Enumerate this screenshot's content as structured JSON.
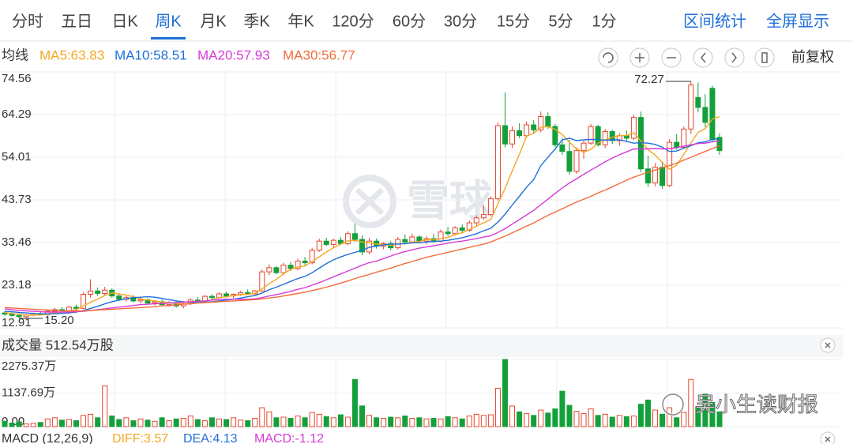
{
  "tabs": [
    "分时",
    "五日",
    "日K",
    "周K",
    "月K",
    "季K",
    "年K",
    "120分",
    "60分",
    "30分",
    "15分",
    "5分",
    "1分"
  ],
  "active_tab": 3,
  "actions": [
    "区间统计",
    "全屏显示"
  ],
  "ma_title": "均线",
  "adjust": "前复权",
  "watermark": "雪球",
  "credit": "吴小生读财报",
  "macd": {
    "label": "MACD (12,26,9)",
    "items": [
      {
        "text": "DIFF:3.57",
        "color": "#f5a623"
      },
      {
        "text": "DEA:4.13",
        "color": "#1e6fd9"
      },
      {
        "text": "MACD:-1.12",
        "color": "#d63bd6"
      }
    ]
  },
  "chart_data": [
    {
      "type": "candlestick",
      "up_color": "#e4462e",
      "down_color": "#13a03b",
      "ylim": [
        12.91,
        74.56
      ],
      "yticks": [
        12.91,
        23.18,
        33.46,
        43.73,
        54.01,
        64.29,
        74.56
      ],
      "grid": true,
      "annotations": [
        {
          "text": "72.27",
          "candle": 96,
          "at": "high"
        },
        {
          "text": "15.20",
          "candle": 2,
          "at": "low"
        }
      ],
      "candles": [
        [
          16.5,
          17.0,
          15.8,
          16.2
        ],
        [
          16.2,
          16.8,
          15.6,
          15.9
        ],
        [
          15.9,
          16.4,
          15.2,
          15.6
        ],
        [
          15.6,
          16.3,
          15.2,
          16.0
        ],
        [
          16.0,
          16.6,
          15.7,
          16.3
        ],
        [
          16.3,
          16.9,
          15.9,
          16.1
        ],
        [
          16.1,
          17.2,
          15.9,
          16.9
        ],
        [
          16.9,
          17.8,
          16.5,
          17.3
        ],
        [
          17.3,
          18.0,
          16.8,
          17.0
        ],
        [
          17.0,
          18.2,
          16.7,
          17.9
        ],
        [
          17.9,
          18.5,
          17.2,
          17.6
        ],
        [
          17.6,
          21.5,
          17.4,
          21.0
        ],
        [
          21.0,
          24.6,
          20.2,
          21.8
        ],
        [
          21.8,
          22.6,
          20.6,
          21.2
        ],
        [
          21.2,
          22.8,
          20.8,
          22.0
        ],
        [
          22.0,
          22.4,
          20.2,
          20.6
        ],
        [
          20.6,
          21.2,
          19.4,
          19.8
        ],
        [
          19.8,
          20.6,
          19.2,
          20.2
        ],
        [
          20.2,
          20.8,
          19.0,
          19.4
        ],
        [
          19.4,
          20.2,
          18.8,
          19.7
        ],
        [
          19.7,
          20.0,
          18.6,
          18.9
        ],
        [
          18.9,
          19.6,
          18.3,
          19.2
        ],
        [
          19.2,
          19.8,
          18.2,
          18.5
        ],
        [
          18.5,
          19.4,
          18.0,
          19.0
        ],
        [
          19.0,
          19.6,
          17.8,
          18.2
        ],
        [
          18.2,
          19.0,
          17.6,
          18.7
        ],
        [
          18.7,
          20.0,
          18.4,
          19.6
        ],
        [
          19.6,
          20.4,
          19.0,
          19.4
        ],
        [
          19.4,
          20.8,
          19.2,
          20.5
        ],
        [
          20.5,
          21.0,
          19.8,
          20.2
        ],
        [
          20.2,
          21.4,
          20.0,
          21.1
        ],
        [
          21.1,
          21.6,
          20.2,
          20.6
        ],
        [
          20.6,
          21.2,
          20.0,
          21.0
        ],
        [
          21.0,
          21.8,
          20.6,
          21.4
        ],
        [
          21.4,
          22.2,
          20.8,
          21.1
        ],
        [
          21.1,
          22.0,
          20.8,
          21.8
        ],
        [
          21.8,
          27.0,
          21.6,
          26.4
        ],
        [
          26.4,
          28.2,
          25.6,
          27.4
        ],
        [
          27.4,
          27.8,
          25.8,
          26.2
        ],
        [
          26.2,
          28.6,
          25.6,
          28.0
        ],
        [
          28.0,
          28.8,
          26.6,
          27.2
        ],
        [
          27.2,
          29.6,
          26.8,
          29.0
        ],
        [
          29.0,
          30.0,
          28.0,
          28.6
        ],
        [
          28.6,
          32.2,
          28.2,
          31.6
        ],
        [
          31.6,
          34.4,
          31.2,
          33.8
        ],
        [
          33.8,
          34.6,
          32.6,
          33.0
        ],
        [
          33.0,
          34.4,
          32.2,
          34.0
        ],
        [
          34.0,
          34.8,
          32.8,
          33.2
        ],
        [
          33.2,
          36.2,
          32.8,
          35.6
        ],
        [
          35.6,
          38.0,
          33.6,
          34.2
        ],
        [
          34.2,
          35.2,
          30.4,
          31.2
        ],
        [
          31.2,
          34.6,
          30.6,
          33.8
        ],
        [
          33.8,
          34.4,
          32.0,
          32.6
        ],
        [
          32.6,
          33.6,
          31.8,
          33.2
        ],
        [
          33.2,
          33.8,
          31.6,
          32.2
        ],
        [
          32.2,
          34.8,
          31.8,
          34.2
        ],
        [
          34.2,
          35.4,
          33.0,
          33.6
        ],
        [
          33.6,
          35.6,
          33.2,
          34.8
        ],
        [
          34.8,
          35.2,
          33.2,
          33.8
        ],
        [
          33.8,
          35.0,
          33.0,
          34.4
        ],
        [
          34.4,
          35.6,
          33.4,
          33.8
        ],
        [
          33.8,
          36.6,
          33.4,
          36.0
        ],
        [
          36.0,
          37.2,
          35.0,
          35.6
        ],
        [
          35.6,
          37.4,
          35.2,
          37.0
        ],
        [
          37.0,
          37.8,
          35.8,
          36.4
        ],
        [
          36.4,
          38.8,
          36.0,
          38.2
        ],
        [
          38.2,
          40.0,
          37.4,
          39.4
        ],
        [
          39.4,
          42.4,
          39.0,
          40.2
        ],
        [
          40.2,
          44.6,
          39.8,
          44.0
        ],
        [
          44.0,
          62.4,
          43.6,
          61.6
        ],
        [
          61.6,
          69.6,
          56.4,
          57.2
        ],
        [
          57.2,
          61.4,
          56.2,
          60.4
        ],
        [
          60.4,
          62.2,
          58.6,
          59.2
        ],
        [
          59.2,
          62.6,
          58.6,
          61.8
        ],
        [
          61.8,
          63.0,
          59.6,
          60.6
        ],
        [
          60.6,
          65.0,
          60.0,
          63.8
        ],
        [
          63.8,
          64.8,
          60.8,
          61.4
        ],
        [
          61.4,
          62.0,
          56.4,
          57.0
        ],
        [
          57.0,
          58.6,
          54.6,
          55.4
        ],
        [
          55.4,
          58.2,
          49.8,
          50.6
        ],
        [
          50.6,
          56.4,
          50.0,
          55.6
        ],
        [
          55.6,
          58.0,
          53.6,
          57.4
        ],
        [
          57.4,
          62.0,
          57.0,
          61.4
        ],
        [
          61.4,
          61.8,
          56.6,
          57.0
        ],
        [
          57.0,
          60.8,
          56.2,
          60.2
        ],
        [
          60.2,
          60.6,
          57.2,
          58.0
        ],
        [
          58.0,
          59.8,
          56.8,
          59.2
        ],
        [
          59.2,
          60.4,
          57.8,
          58.6
        ],
        [
          58.6,
          64.2,
          58.2,
          63.6
        ],
        [
          63.6,
          65.0,
          50.4,
          51.2
        ],
        [
          51.2,
          54.4,
          46.8,
          47.8
        ],
        [
          47.8,
          52.6,
          47.0,
          51.6
        ],
        [
          51.6,
          53.0,
          46.4,
          47.2
        ],
        [
          47.2,
          58.4,
          46.8,
          57.6
        ],
        [
          57.6,
          59.6,
          55.8,
          56.4
        ],
        [
          56.4,
          61.4,
          56.0,
          60.8
        ],
        [
          60.8,
          72.27,
          59.6,
          71.4
        ],
        [
          68.4,
          72.0,
          64.8,
          66.0
        ],
        [
          66.0,
          69.2,
          61.2,
          62.4
        ],
        [
          70.6,
          71.2,
          57.6,
          58.2
        ],
        [
          58.8,
          59.8,
          54.6,
          55.6
        ]
      ],
      "series": [
        {
          "name": "MA5:63.83",
          "color": "#f5a623",
          "values": [
            16.6,
            16.4,
            16.2,
            16.0,
            16.0,
            16.0,
            16.2,
            16.5,
            16.7,
            17.0,
            17.3,
            18.2,
            19.1,
            19.8,
            20.7,
            21.3,
            21.1,
            20.8,
            20.4,
            19.9,
            19.6,
            19.4,
            19.1,
            19.0,
            18.8,
            18.7,
            18.8,
            18.9,
            19.3,
            19.7,
            20.2,
            20.4,
            20.7,
            20.9,
            21.0,
            21.2,
            22.3,
            23.6,
            24.6,
            25.9,
            27.0,
            27.6,
            27.8,
            28.9,
            30.0,
            31.2,
            32.2,
            33.1,
            33.9,
            34.0,
            33.6,
            33.4,
            33.1,
            33.0,
            32.8,
            33.2,
            33.2,
            33.6,
            33.7,
            34.2,
            34.1,
            34.4,
            34.7,
            35.4,
            35.8,
            36.6,
            37.4,
            38.2,
            39.0,
            42.8,
            46.5,
            50.7,
            54.7,
            59.1,
            59.8,
            61.2,
            61.4,
            60.7,
            59.5,
            57.6,
            56.0,
            55.2,
            55.9,
            57.4,
            58.2,
            58.8,
            59.2,
            59.2,
            59.9,
            57.9,
            55.8,
            54.5,
            52.7,
            51.1,
            52.1,
            54.7,
            57.5,
            60.0,
            60.9,
            63.2,
            63.8
          ]
        },
        {
          "name": "MA10:58.51",
          "color": "#1e6fd9",
          "values": [
            16.9,
            16.8,
            16.6,
            16.5,
            16.4,
            16.3,
            16.3,
            16.3,
            16.4,
            16.5,
            16.7,
            17.1,
            17.6,
            18.1,
            18.7,
            19.2,
            19.6,
            19.9,
            20.2,
            20.3,
            20.4,
            20.3,
            20.0,
            19.7,
            19.4,
            19.2,
            19.1,
            19.0,
            19.1,
            19.2,
            19.4,
            19.6,
            19.8,
            20.1,
            20.4,
            20.7,
            21.3,
            22.1,
            22.7,
            23.4,
            24.1,
            24.8,
            25.3,
            26.2,
            27.3,
            28.4,
            29.3,
            30.0,
            30.6,
            31.1,
            31.6,
            32.3,
            32.6,
            32.9,
            33.1,
            33.1,
            33.2,
            33.4,
            33.4,
            33.6,
            33.7,
            33.8,
            34.0,
            34.3,
            34.6,
            35.1,
            35.6,
            36.3,
            36.9,
            38.4,
            40.3,
            42.5,
            44.6,
            46.8,
            48.6,
            52.0,
            54.0,
            56.0,
            58.2,
            58.6,
            58.0,
            58.2,
            58.3,
            58.3,
            58.1,
            58.2,
            58.2,
            57.8,
            57.4,
            57.5,
            57.4,
            57.1,
            56.4,
            55.4,
            55.5,
            56.2,
            56.8,
            57.5,
            57.7,
            58.3,
            58.5
          ]
        },
        {
          "name": "MA20:57.93",
          "color": "#d63bd6",
          "values": [
            17.5,
            17.3,
            17.1,
            17.0,
            16.9,
            16.8,
            16.7,
            16.7,
            16.7,
            16.7,
            16.8,
            16.9,
            17.1,
            17.3,
            17.5,
            17.7,
            17.9,
            18.1,
            18.3,
            18.5,
            18.6,
            18.7,
            18.8,
            18.9,
            19.0,
            19.1,
            19.2,
            19.3,
            19.4,
            19.6,
            19.7,
            19.8,
            19.8,
            19.8,
            19.8,
            19.9,
            20.2,
            20.6,
            20.9,
            21.3,
            21.7,
            22.2,
            22.6,
            23.2,
            23.8,
            24.5,
            25.2,
            25.9,
            26.6,
            27.3,
            28.0,
            28.6,
            29.0,
            29.6,
            30.2,
            30.8,
            31.3,
            31.7,
            32.1,
            32.4,
            32.7,
            33.0,
            33.3,
            33.6,
            33.8,
            34.1,
            34.4,
            34.8,
            35.1,
            35.9,
            36.8,
            37.9,
            39.0,
            40.1,
            41.2,
            42.6,
            43.9,
            45.3,
            46.6,
            47.8,
            48.8,
            49.9,
            50.9,
            51.9,
            52.9,
            53.8,
            54.6,
            55.3,
            56.0,
            56.0,
            56.0,
            56.1,
            56.0,
            56.1,
            56.3,
            56.7,
            57.0,
            57.3,
            57.4,
            57.7,
            57.9
          ]
        },
        {
          "name": "MA30:56.77",
          "color": "#f26c3a",
          "values": [
            17.8,
            17.7,
            17.6,
            17.5,
            17.4,
            17.3,
            17.2,
            17.1,
            17.0,
            17.0,
            17.0,
            17.0,
            17.1,
            17.2,
            17.3,
            17.4,
            17.5,
            17.6,
            17.7,
            17.8,
            17.9,
            18.0,
            18.2,
            18.3,
            18.4,
            18.6,
            18.7,
            18.9,
            19.0,
            19.1,
            19.2,
            19.3,
            19.4,
            19.5,
            19.6,
            19.7,
            19.9,
            20.1,
            20.3,
            20.6,
            20.9,
            21.2,
            21.5,
            21.9,
            22.3,
            22.7,
            23.2,
            23.7,
            24.2,
            24.8,
            25.3,
            25.8,
            26.3,
            26.8,
            27.3,
            27.9,
            28.4,
            28.9,
            29.4,
            29.9,
            30.3,
            30.7,
            31.1,
            31.5,
            31.9,
            32.3,
            32.7,
            33.1,
            33.6,
            34.3,
            35.0,
            35.8,
            36.6,
            37.4,
            38.2,
            39.1,
            40.0,
            40.8,
            41.6,
            42.4,
            43.2,
            43.9,
            44.6,
            45.4,
            46.1,
            46.9,
            47.7,
            48.5,
            49.2,
            49.8,
            50.4,
            50.9,
            51.5,
            52.0,
            52.6,
            53.3,
            54.0,
            54.7,
            55.4,
            56.1,
            56.8
          ]
        }
      ]
    },
    {
      "type": "bar",
      "title": "成交量 512.54万股",
      "ylim": [
        0,
        2275.37
      ],
      "yticks": [
        {
          "value": 0,
          "label": "0.00"
        },
        {
          "value": 1137.69,
          "label": "1137.69万"
        },
        {
          "value": 2275.37,
          "label": "2275.37万"
        }
      ],
      "values": [
        180,
        120,
        160,
        90,
        110,
        140,
        260,
        300,
        220,
        240,
        200,
        380,
        420,
        300,
        1380,
        360,
        240,
        300,
        200,
        260,
        220,
        180,
        300,
        200,
        260,
        280,
        360,
        240,
        200,
        300,
        260,
        240,
        300,
        220,
        200,
        280,
        640,
        500,
        300,
        320,
        280,
        360,
        300,
        480,
        420,
        340,
        300,
        400,
        320,
        1600,
        700,
        380,
        300,
        280,
        320,
        300,
        360,
        280,
        300,
        260,
        280,
        260,
        340,
        300,
        260,
        360,
        420,
        380,
        400,
        1300,
        2275,
        700,
        500,
        440,
        380,
        560,
        460,
        600,
        1200,
        720,
        520,
        440,
        600,
        380,
        420,
        320,
        380,
        340,
        360,
        760,
        900,
        560,
        420,
        640,
        300,
        480,
        1600,
        680,
        1100,
        820,
        500
      ]
    }
  ]
}
